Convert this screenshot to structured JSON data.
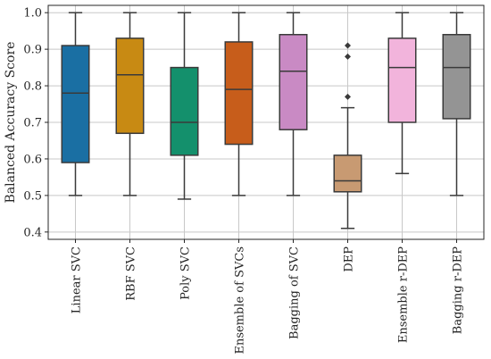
{
  "chart_data": {
    "type": "boxplot",
    "ylabel": "Balanced Accuracy Score",
    "xlabel": "",
    "ylim": [
      0.38,
      1.02
    ],
    "yticks": [
      0.4,
      0.5,
      0.6,
      0.7,
      0.8,
      0.9,
      1.0
    ],
    "grid": true,
    "categories": [
      "Linear SVC",
      "RBF SVC",
      "Poly SVC",
      "Ensemble of SVCs",
      "Bagging of SVC",
      "DEP",
      "Ensemble r-DEP",
      "Bagging r-DEP"
    ],
    "boxes": [
      {
        "whisker_low": 0.5,
        "q1": 0.59,
        "median": 0.78,
        "q3": 0.91,
        "whisker_high": 1.0,
        "outliers": [],
        "color": "#1a6fa3"
      },
      {
        "whisker_low": 0.5,
        "q1": 0.67,
        "median": 0.83,
        "q3": 0.93,
        "whisker_high": 1.0,
        "outliers": [],
        "color": "#c88a13"
      },
      {
        "whisker_low": 0.49,
        "q1": 0.61,
        "median": 0.7,
        "q3": 0.85,
        "whisker_high": 1.0,
        "outliers": [],
        "color": "#14906c"
      },
      {
        "whisker_low": 0.5,
        "q1": 0.64,
        "median": 0.79,
        "q3": 0.92,
        "whisker_high": 1.0,
        "outliers": [],
        "color": "#c75d1b"
      },
      {
        "whisker_low": 0.5,
        "q1": 0.68,
        "median": 0.84,
        "q3": 0.94,
        "whisker_high": 1.0,
        "outliers": [],
        "color": "#c98ac4"
      },
      {
        "whisker_low": 0.41,
        "q1": 0.51,
        "median": 0.54,
        "q3": 0.61,
        "whisker_high": 0.74,
        "outliers": [
          0.77,
          0.88,
          0.91
        ],
        "color": "#c89a72"
      },
      {
        "whisker_low": 0.56,
        "q1": 0.7,
        "median": 0.85,
        "q3": 0.93,
        "whisker_high": 1.0,
        "outliers": [],
        "color": "#f2b4dc"
      },
      {
        "whisker_low": 0.5,
        "q1": 0.71,
        "median": 0.85,
        "q3": 0.94,
        "whisker_high": 1.0,
        "outliers": [],
        "color": "#949494"
      }
    ],
    "ytick_labels": [
      "0.4",
      "0.5",
      "0.6",
      "0.7",
      "0.8",
      "0.9",
      "1.0"
    ]
  }
}
